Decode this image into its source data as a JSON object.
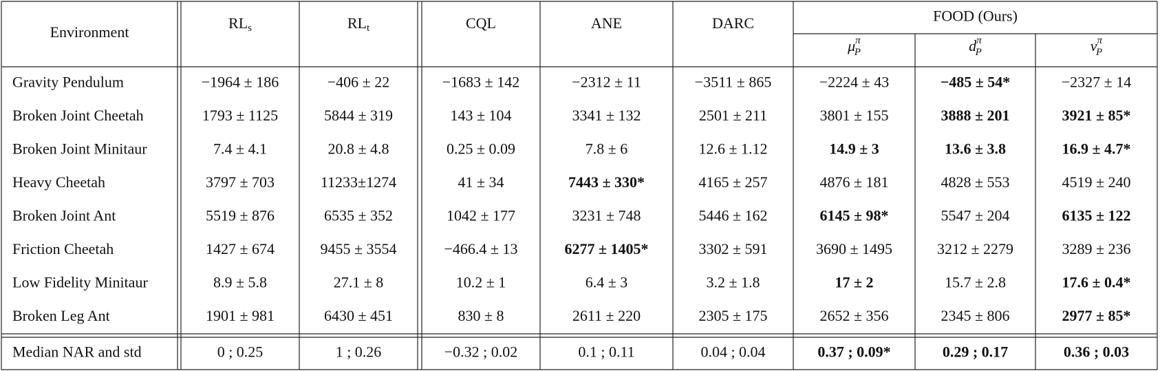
{
  "table": {
    "header": {
      "environment": "Environment",
      "methods": [
        {
          "main": "RL",
          "sub": "s"
        },
        {
          "main": "RL",
          "sub": "t"
        },
        {
          "main": "CQL"
        },
        {
          "main": "ANE"
        },
        {
          "main": "DARC"
        }
      ],
      "food_group": "FOOD (Ours)",
      "food_variants": [
        {
          "main": "μ",
          "sup": "π",
          "sub": "P"
        },
        {
          "main": "d",
          "sup": "π",
          "sub": "P"
        },
        {
          "main": "ν",
          "sup": "π",
          "sub": "P"
        }
      ]
    },
    "rows": [
      {
        "env": "Gravity Pendulum",
        "cells": [
          {
            "text": "−1964 ± 186"
          },
          {
            "text": "−406 ± 22"
          },
          {
            "text": "−1683 ± 142"
          },
          {
            "text": "−2312 ± 11"
          },
          {
            "text": "−3511 ± 865"
          },
          {
            "text": "−2224 ± 43"
          },
          {
            "text": "−485 ± 54*",
            "bold": true
          },
          {
            "text": "−2327 ± 14"
          }
        ]
      },
      {
        "env": "Broken Joint Cheetah",
        "cells": [
          {
            "text": "1793 ± 1125"
          },
          {
            "text": "5844 ± 319"
          },
          {
            "text": "143 ± 104"
          },
          {
            "text": "3341 ± 132"
          },
          {
            "text": "2501 ± 211"
          },
          {
            "text": "3801 ± 155"
          },
          {
            "text": "3888 ± 201",
            "bold": true
          },
          {
            "text": "3921 ± 85*",
            "bold": true
          }
        ]
      },
      {
        "env": "Broken Joint Minitaur",
        "cells": [
          {
            "text": "7.4 ± 4.1"
          },
          {
            "text": "20.8 ± 4.8"
          },
          {
            "text": "0.25 ± 0.09"
          },
          {
            "text": "7.8 ± 6"
          },
          {
            "text": "12.6 ± 1.12"
          },
          {
            "text": "14.9 ± 3",
            "bold": true
          },
          {
            "text": "13.6 ± 3.8",
            "bold": true
          },
          {
            "text": "16.9 ± 4.7*",
            "bold": true
          }
        ]
      },
      {
        "env": "Heavy Cheetah",
        "cells": [
          {
            "text": "3797 ± 703"
          },
          {
            "text": "11233±1274"
          },
          {
            "text": "41 ± 34"
          },
          {
            "text": "7443 ± 330*",
            "bold": true
          },
          {
            "text": "4165 ± 257"
          },
          {
            "text": "4876 ± 181"
          },
          {
            "text": "4828 ± 553"
          },
          {
            "text": "4519 ± 240"
          }
        ]
      },
      {
        "env": "Broken Joint Ant",
        "cells": [
          {
            "text": "5519 ± 876"
          },
          {
            "text": "6535 ± 352"
          },
          {
            "text": "1042 ± 177"
          },
          {
            "text": "3231 ± 748"
          },
          {
            "text": "5446 ± 162"
          },
          {
            "text": "6145 ± 98*",
            "bold": true
          },
          {
            "text": "5547 ± 204"
          },
          {
            "text": "6135 ± 122",
            "bold": true
          }
        ]
      },
      {
        "env": "Friction Cheetah",
        "cells": [
          {
            "text": "1427 ± 674"
          },
          {
            "text": "9455 ± 3554"
          },
          {
            "text": "−466.4 ± 13"
          },
          {
            "text": "6277 ± 1405*",
            "bold": true
          },
          {
            "text": "3302 ± 591"
          },
          {
            "text": "3690 ± 1495"
          },
          {
            "text": "3212 ± 2279"
          },
          {
            "text": "3289 ± 236"
          }
        ]
      },
      {
        "env": "Low Fidelity Minitaur",
        "cells": [
          {
            "text": "8.9 ± 5.8"
          },
          {
            "text": "27.1 ± 8"
          },
          {
            "text": "10.2 ± 1"
          },
          {
            "text": "6.4 ± 3"
          },
          {
            "text": "3.2 ± 1.8"
          },
          {
            "text": "17 ± 2",
            "bold": true
          },
          {
            "text": "15.7 ± 2.8"
          },
          {
            "text": "17.6 ± 0.4*",
            "bold": true
          }
        ]
      },
      {
        "env": "Broken Leg Ant",
        "cells": [
          {
            "text": "1901 ± 981"
          },
          {
            "text": "6430 ± 451"
          },
          {
            "text": "830 ± 8"
          },
          {
            "text": "2611 ± 220"
          },
          {
            "text": "2305 ± 175"
          },
          {
            "text": "2652 ± 356"
          },
          {
            "text": "2345 ± 806"
          },
          {
            "text": "2977 ± 85*",
            "bold": true
          }
        ]
      }
    ],
    "summary": {
      "env": "Median NAR and std",
      "cells": [
        {
          "text": "0 ; 0.25"
        },
        {
          "text": "1 ; 0.26"
        },
        {
          "text": "−0.32 ; 0.02"
        },
        {
          "text": "0.1 ; 0.11"
        },
        {
          "text": "0.04 ; 0.04"
        },
        {
          "text": "0.37 ; 0.09*",
          "bold": true
        },
        {
          "text": "0.29 ; 0.17",
          "bold": true
        },
        {
          "text": "0.36 ; 0.03",
          "bold": true
        }
      ]
    }
  }
}
